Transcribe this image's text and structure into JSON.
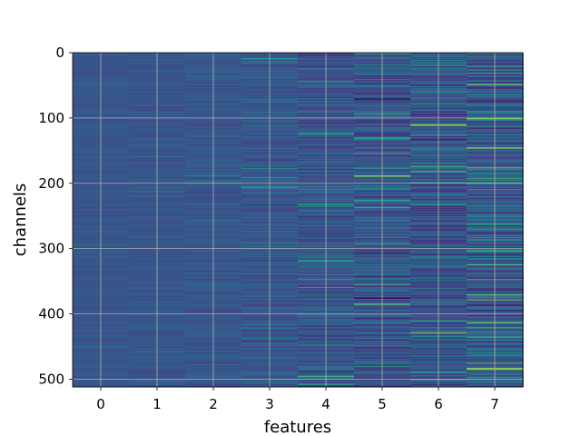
{
  "chart_data": {
    "type": "heatmap",
    "xlabel": "features",
    "ylabel": "channels",
    "x_categories": [
      "0",
      "1",
      "2",
      "3",
      "4",
      "5",
      "6",
      "7"
    ],
    "x_ticks": [
      0,
      1,
      2,
      3,
      4,
      5,
      6,
      7
    ],
    "y_ticks": [
      0,
      100,
      200,
      300,
      400,
      500
    ],
    "y_tick_labels": [
      "0",
      "100",
      "200",
      "300",
      "400",
      "500"
    ],
    "ylim": [
      512,
      0
    ],
    "xlim": [
      -0.5,
      7.5
    ],
    "n_channels": 512,
    "n_features": 8,
    "grid": true,
    "colormap": "viridis",
    "base_color": "#3b528b",
    "feature_column_tones": [
      "#3e4e8b",
      "#3d4f8b",
      "#3c4f8a",
      "#3b528b",
      "#3a4c89",
      "#3a4886",
      "#3b4f8a",
      "#3b4f8a"
    ],
    "feature_spread": [
      0.04,
      0.05,
      0.06,
      0.09,
      0.12,
      0.15,
      0.16,
      0.18
    ],
    "highlighted_rows": [
      {
        "feature": 3,
        "channel": 8,
        "value": 0.55
      },
      {
        "feature": 3,
        "channel": 205,
        "value": 0.55
      },
      {
        "feature": 4,
        "channel": 123,
        "value": 0.6
      },
      {
        "feature": 4,
        "channel": 232,
        "value": 0.6
      },
      {
        "feature": 4,
        "channel": 318,
        "value": 0.6
      },
      {
        "feature": 4,
        "channel": 495,
        "value": 0.65
      },
      {
        "feature": 4,
        "channel": 507,
        "value": 0.6
      },
      {
        "feature": 5,
        "channel": 130,
        "value": 0.6
      },
      {
        "feature": 5,
        "channel": 188,
        "value": 0.8
      },
      {
        "feature": 5,
        "channel": 225,
        "value": 0.6
      },
      {
        "feature": 5,
        "channel": 292,
        "value": 0.55
      },
      {
        "feature": 5,
        "channel": 70,
        "value": 0.0
      },
      {
        "feature": 5,
        "channel": 375,
        "value": 0.0
      },
      {
        "feature": 6,
        "channel": 110,
        "value": 0.85
      },
      {
        "feature": 6,
        "channel": 232,
        "value": 0.6
      },
      {
        "feature": 6,
        "channel": 410,
        "value": 0.6
      },
      {
        "feature": 6,
        "channel": 428,
        "value": 0.75
      },
      {
        "feature": 7,
        "channel": 20,
        "value": 0.55
      },
      {
        "feature": 7,
        "channel": 48,
        "value": 0.75
      },
      {
        "feature": 7,
        "channel": 100,
        "value": 0.8
      },
      {
        "feature": 7,
        "channel": 145,
        "value": 0.8
      },
      {
        "feature": 7,
        "channel": 262,
        "value": 0.6
      },
      {
        "feature": 7,
        "channel": 302,
        "value": 0.6
      },
      {
        "feature": 7,
        "channel": 370,
        "value": 0.7
      },
      {
        "feature": 7,
        "channel": 435,
        "value": 0.6
      },
      {
        "feature": 7,
        "channel": 483,
        "value": 0.85
      }
    ]
  }
}
